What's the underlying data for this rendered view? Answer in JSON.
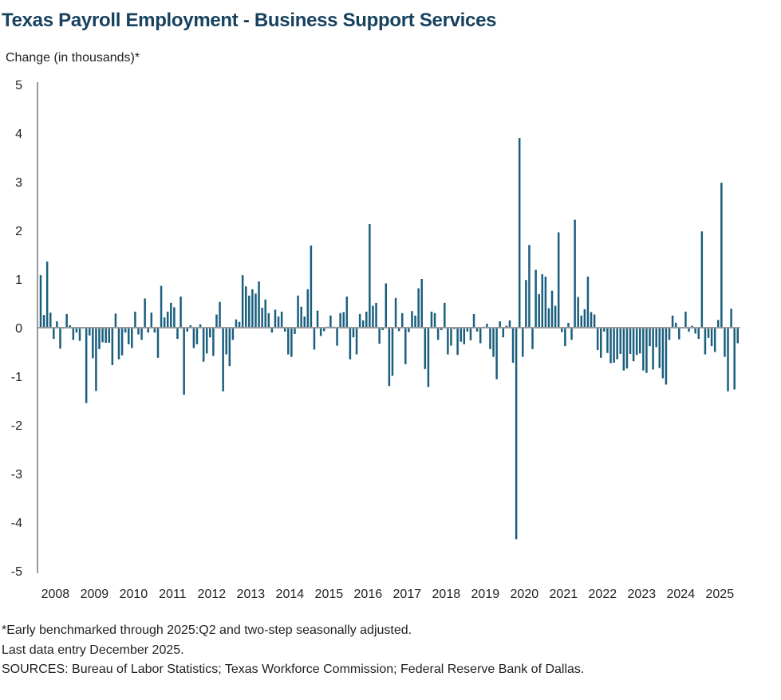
{
  "chart_data": {
    "type": "bar",
    "title": "Texas Payroll Employment - Business Support Services",
    "ylabel": "Change (in thousands)*",
    "xlabel": "",
    "ylim": [
      -5,
      5
    ],
    "yticks": [
      "5",
      "4",
      "3",
      "2",
      "1",
      "0",
      "-1",
      "-2",
      "-3",
      "-4",
      "-5"
    ],
    "xticks": [
      "2008",
      "2009",
      "2010",
      "2011",
      "2012",
      "2013",
      "2014",
      "2015",
      "2016",
      "2017",
      "2018",
      "2019",
      "2020",
      "2021",
      "2022",
      "2023",
      "2024",
      "2025"
    ],
    "frequency": "monthly",
    "start_month": "2008-02",
    "end_month": "2025-12",
    "bar_color": "#1a5f7e",
    "grid": false,
    "values": [
      1.08,
      0.26,
      1.36,
      0.31,
      -0.23,
      0.13,
      -0.43,
      -0.02,
      0.28,
      0.05,
      -0.25,
      -0.1,
      -0.27,
      -0.02,
      -1.55,
      -0.16,
      -0.63,
      -1.3,
      -0.44,
      -0.3,
      -0.31,
      -0.31,
      -0.77,
      0.29,
      -0.65,
      -0.57,
      -0.1,
      -0.34,
      -0.42,
      0.33,
      -0.14,
      -0.25,
      0.6,
      -0.1,
      0.31,
      -0.1,
      -0.62,
      0.86,
      0.21,
      0.33,
      0.51,
      0.42,
      -0.23,
      0.64,
      -1.38,
      -0.08,
      0.05,
      -0.42,
      -0.34,
      0.07,
      -0.7,
      -0.53,
      -0.2,
      -0.58,
      0.27,
      0.53,
      -1.31,
      -0.55,
      -0.79,
      -0.25,
      0.17,
      0.12,
      1.08,
      0.85,
      0.66,
      0.79,
      0.7,
      0.95,
      0.41,
      0.58,
      0.3,
      -0.1,
      0.37,
      0.23,
      0.33,
      -0.08,
      -0.55,
      -0.6,
      -0.13,
      0.66,
      0.43,
      0.23,
      0.79,
      1.69,
      -0.45,
      0.35,
      -0.17,
      -0.07,
      0.02,
      0.25,
      0.02,
      -0.37,
      0.3,
      0.32,
      0.64,
      -0.65,
      -0.2,
      -0.55,
      0.28,
      0.15,
      0.33,
      2.13,
      0.45,
      0.51,
      -0.33,
      -0.05,
      0.91,
      -1.2,
      -0.99,
      0.61,
      -0.07,
      0.3,
      -0.75,
      -0.09,
      0.34,
      0.25,
      0.81,
      1.0,
      -0.85,
      -1.22,
      0.33,
      0.3,
      -0.25,
      -0.05,
      0.51,
      -0.55,
      -0.37,
      -0.03,
      -0.56,
      -0.29,
      -0.34,
      -0.08,
      -0.26,
      0.28,
      -0.08,
      -0.32,
      0.02,
      0.08,
      -0.44,
      -0.6,
      -1.06,
      0.13,
      -0.2,
      0.04,
      0.15,
      -0.72,
      -4.35,
      3.9,
      -0.6,
      0.98,
      1.7,
      -0.44,
      1.19,
      0.69,
      1.1,
      1.05,
      0.4,
      0.76,
      0.45,
      1.96,
      -0.09,
      -0.38,
      0.1,
      -0.25,
      2.22,
      0.63,
      0.25,
      0.38,
      1.05,
      0.32,
      0.27,
      -0.46,
      -0.62,
      -0.08,
      -0.52,
      -0.73,
      -0.72,
      -0.65,
      -0.54,
      -0.88,
      -0.84,
      -0.54,
      -0.69,
      -0.56,
      -0.53,
      -0.88,
      -0.93,
      -0.38,
      -0.86,
      -0.4,
      -0.83,
      -1.04,
      -1.17,
      -0.25,
      0.25,
      0.1,
      -0.24,
      0.0,
      0.33,
      -0.08,
      0.04,
      -0.12,
      -0.23,
      1.98,
      -0.55,
      -0.21,
      -0.38,
      -0.5,
      0.16,
      2.98,
      -0.6,
      -1.31,
      0.39,
      -1.27,
      -0.32
    ]
  },
  "notes": {
    "footnote": "*Early benchmarked through 2025:Q2 and two-step seasonally adjusted.",
    "last_entry": "Last data entry December 2025.",
    "sources": "SOURCES: Bureau of Labor Statistics; Texas Workforce Commission; Federal Reserve Bank of Dallas."
  }
}
